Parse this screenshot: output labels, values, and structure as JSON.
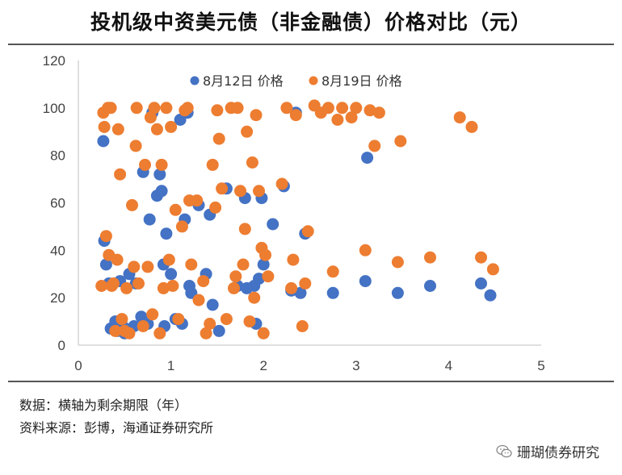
{
  "title": "投机级中资美元债（非金融债）价格对比（元）",
  "notes": {
    "data_note": "数据：横轴为剩余期限（年）",
    "source_note": "资料来源：彭博，海通证券研究所"
  },
  "watermark": {
    "text": "珊瑚债券研究",
    "icon": "wechat-icon"
  },
  "colors": {
    "series1": "#4472C4",
    "series2": "#ED7D31"
  },
  "chart_data": {
    "type": "scatter",
    "title": "投机级中资美元债（非金融债）价格对比（元）",
    "xlabel": "",
    "ylabel": "",
    "xlim": [
      0,
      5
    ],
    "ylim": [
      0,
      120
    ],
    "xticks": [
      "0",
      "1",
      "2",
      "3",
      "4",
      "5"
    ],
    "yticks": [
      "0",
      "20",
      "40",
      "60",
      "80",
      "100",
      "120"
    ],
    "grid": false,
    "legend_position": "top",
    "series": [
      {
        "name": "8月12日 价格",
        "color": "#4472C4",
        "points": [
          [
            0.27,
            86
          ],
          [
            0.28,
            44
          ],
          [
            0.3,
            34
          ],
          [
            0.33,
            26
          ],
          [
            0.35,
            7
          ],
          [
            0.4,
            10
          ],
          [
            0.42,
            6
          ],
          [
            0.45,
            27
          ],
          [
            0.48,
            8
          ],
          [
            0.5,
            5
          ],
          [
            0.55,
            30
          ],
          [
            0.6,
            8
          ],
          [
            0.62,
            26
          ],
          [
            0.68,
            12
          ],
          [
            0.7,
            73
          ],
          [
            0.75,
            9
          ],
          [
            0.77,
            53
          ],
          [
            0.8,
            98
          ],
          [
            0.85,
            63
          ],
          [
            0.88,
            72
          ],
          [
            0.9,
            65
          ],
          [
            0.92,
            34
          ],
          [
            0.93,
            8
          ],
          [
            0.95,
            47
          ],
          [
            1.0,
            30
          ],
          [
            1.05,
            11
          ],
          [
            1.1,
            95
          ],
          [
            1.12,
            9
          ],
          [
            1.15,
            53
          ],
          [
            1.18,
            98
          ],
          [
            1.2,
            25
          ],
          [
            1.22,
            22
          ],
          [
            1.3,
            59
          ],
          [
            1.38,
            30
          ],
          [
            1.42,
            55
          ],
          [
            1.45,
            17
          ],
          [
            1.52,
            6
          ],
          [
            1.6,
            66
          ],
          [
            1.72,
            25
          ],
          [
            1.8,
            62
          ],
          [
            1.82,
            24
          ],
          [
            1.9,
            25
          ],
          [
            1.92,
            9
          ],
          [
            1.95,
            28
          ],
          [
            1.98,
            62
          ],
          [
            2.0,
            34
          ],
          [
            2.1,
            51
          ],
          [
            2.22,
            67
          ],
          [
            2.3,
            23
          ],
          [
            2.35,
            98
          ],
          [
            2.4,
            22
          ],
          [
            2.45,
            47
          ],
          [
            2.75,
            22
          ],
          [
            3.1,
            27
          ],
          [
            3.12,
            79
          ],
          [
            3.45,
            22
          ],
          [
            3.8,
            25
          ],
          [
            4.35,
            26
          ],
          [
            4.45,
            21
          ]
        ]
      },
      {
        "name": "8月19日 价格",
        "color": "#ED7D31",
        "points": [
          [
            0.25,
            25
          ],
          [
            0.27,
            98
          ],
          [
            0.28,
            92
          ],
          [
            0.3,
            46
          ],
          [
            0.32,
            100
          ],
          [
            0.33,
            38
          ],
          [
            0.35,
            100
          ],
          [
            0.36,
            25
          ],
          [
            0.38,
            26
          ],
          [
            0.4,
            6
          ],
          [
            0.42,
            36
          ],
          [
            0.43,
            91
          ],
          [
            0.45,
            72
          ],
          [
            0.47,
            11
          ],
          [
            0.5,
            6
          ],
          [
            0.52,
            24
          ],
          [
            0.55,
            5
          ],
          [
            0.58,
            59
          ],
          [
            0.6,
            33
          ],
          [
            0.62,
            84
          ],
          [
            0.63,
            100
          ],
          [
            0.65,
            26
          ],
          [
            0.7,
            8
          ],
          [
            0.72,
            76
          ],
          [
            0.75,
            33
          ],
          [
            0.78,
            96
          ],
          [
            0.8,
            13
          ],
          [
            0.82,
            100
          ],
          [
            0.85,
            91
          ],
          [
            0.88,
            5
          ],
          [
            0.9,
            76
          ],
          [
            0.92,
            24
          ],
          [
            0.95,
            100
          ],
          [
            0.98,
            36
          ],
          [
            1.0,
            92
          ],
          [
            1.02,
            25
          ],
          [
            1.05,
            57
          ],
          [
            1.08,
            11
          ],
          [
            1.12,
            50
          ],
          [
            1.15,
            99
          ],
          [
            1.18,
            100
          ],
          [
            1.2,
            61
          ],
          [
            1.22,
            34
          ],
          [
            1.28,
            61
          ],
          [
            1.3,
            19
          ],
          [
            1.35,
            27
          ],
          [
            1.38,
            5
          ],
          [
            1.42,
            9
          ],
          [
            1.45,
            76
          ],
          [
            1.48,
            58
          ],
          [
            1.5,
            99
          ],
          [
            1.52,
            87
          ],
          [
            1.55,
            66
          ],
          [
            1.6,
            11
          ],
          [
            1.65,
            100
          ],
          [
            1.68,
            24
          ],
          [
            1.7,
            29
          ],
          [
            1.72,
            100
          ],
          [
            1.75,
            65
          ],
          [
            1.78,
            34
          ],
          [
            1.8,
            49
          ],
          [
            1.82,
            90
          ],
          [
            1.85,
            10
          ],
          [
            1.88,
            77
          ],
          [
            1.9,
            20
          ],
          [
            1.92,
            97
          ],
          [
            1.95,
            65
          ],
          [
            1.98,
            41
          ],
          [
            2.0,
            5
          ],
          [
            2.02,
            38
          ],
          [
            2.05,
            29
          ],
          [
            2.2,
            68
          ],
          [
            2.25,
            100
          ],
          [
            2.3,
            24
          ],
          [
            2.32,
            36
          ],
          [
            2.35,
            97
          ],
          [
            2.42,
            8
          ],
          [
            2.45,
            26
          ],
          [
            2.48,
            48
          ],
          [
            2.55,
            101
          ],
          [
            2.62,
            98
          ],
          [
            2.7,
            100
          ],
          [
            2.75,
            31
          ],
          [
            2.8,
            95
          ],
          [
            2.85,
            100
          ],
          [
            2.95,
            96
          ],
          [
            3.0,
            100
          ],
          [
            3.1,
            40
          ],
          [
            3.15,
            99
          ],
          [
            3.2,
            84
          ],
          [
            3.25,
            98
          ],
          [
            3.45,
            35
          ],
          [
            3.48,
            86
          ],
          [
            3.8,
            37
          ],
          [
            4.12,
            96
          ],
          [
            4.25,
            92
          ],
          [
            4.35,
            37
          ],
          [
            4.48,
            32
          ]
        ]
      }
    ]
  }
}
